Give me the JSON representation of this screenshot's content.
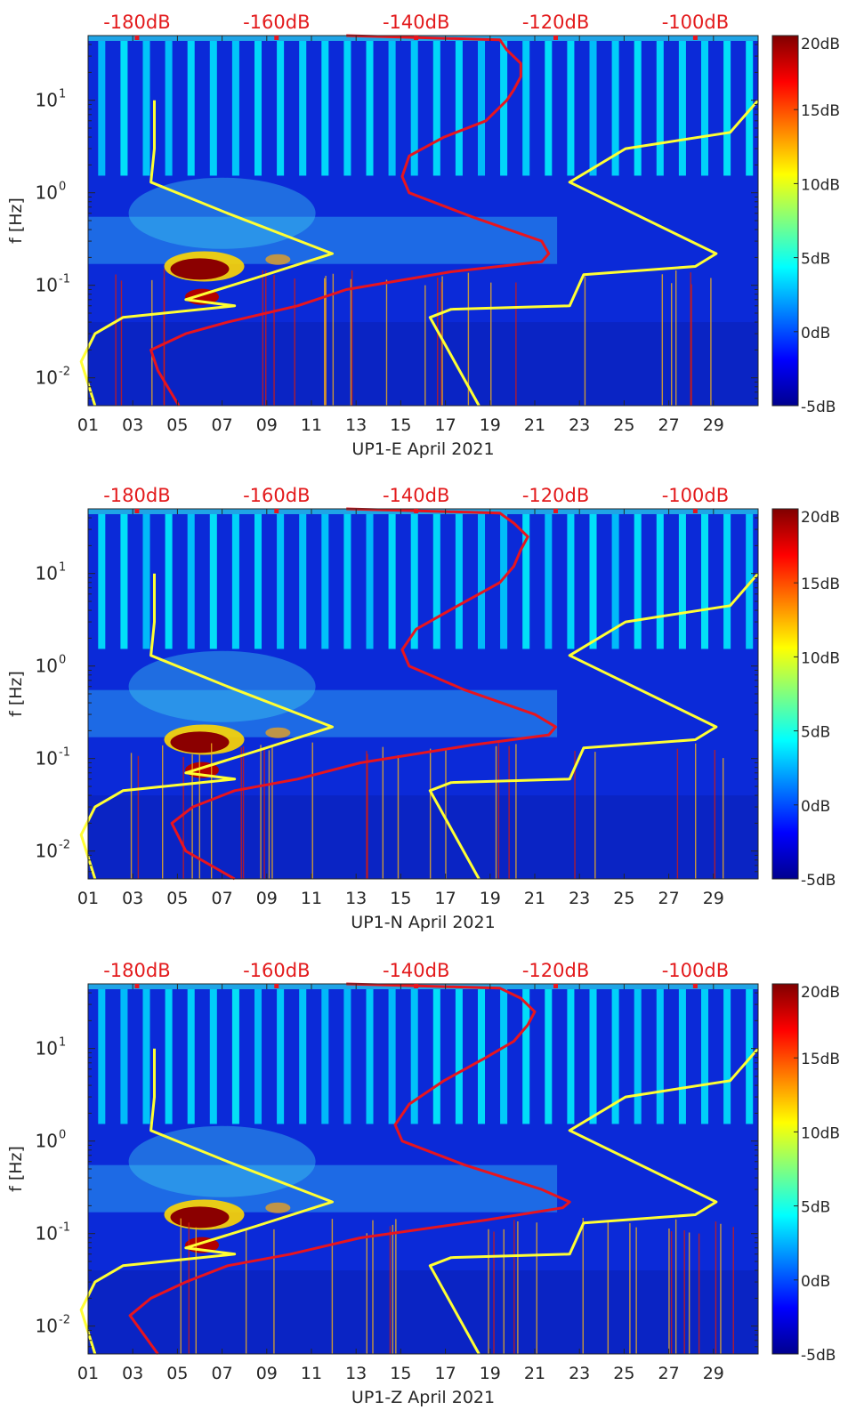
{
  "chart_data": [
    {
      "type": "heatmap",
      "xlabel": "UP1-E April 2021",
      "ylabel": "f [Hz]",
      "x_ticks": [
        "01",
        "03",
        "05",
        "07",
        "09",
        "11",
        "13",
        "15",
        "17",
        "19",
        "21",
        "23",
        "25",
        "27",
        "29"
      ],
      "x_range_days": [
        1,
        31
      ],
      "y_scale": "log",
      "y_range_hz": [
        0.005,
        50
      ],
      "y_ticks": [
        {
          "exp": "1",
          "value": 10
        },
        {
          "exp": "0",
          "value": 1
        },
        {
          "exp": "-1",
          "value": 0.1
        },
        {
          "exp": "-2",
          "value": 0.01
        }
      ],
      "top_axis_ticks": [
        "-180dB",
        "-160dB",
        "-140dB",
        "-120dB",
        "-100dB"
      ],
      "top_axis_range_db": [
        -187,
        -91
      ],
      "colorbar_ticks": [
        "20dB",
        "15dB",
        "10dB",
        "5dB",
        "0dB",
        "-5dB"
      ],
      "colorbar_range_db": [
        -5,
        20
      ],
      "colormap": "jet",
      "overlay_colors": {
        "noise_model": "#ffff33",
        "psd": "#e8141e"
      },
      "noise_model_low": [
        [
          -177.5,
          10
        ],
        [
          -177.5,
          3
        ],
        [
          -178,
          1.3
        ],
        [
          -167,
          0.6
        ],
        [
          -152,
          0.22
        ],
        [
          -163,
          0.12
        ],
        [
          -173,
          0.07
        ],
        [
          -166,
          0.06
        ],
        [
          -182,
          0.045
        ],
        [
          -186,
          0.03
        ],
        [
          -188,
          0.015
        ],
        [
          -186,
          0.005
        ]
      ],
      "noise_model_high": [
        [
          -91,
          10
        ],
        [
          -95,
          4.5
        ],
        [
          -110,
          3
        ],
        [
          -118,
          1.3
        ],
        [
          -97,
          0.22
        ],
        [
          -100,
          0.16
        ],
        [
          -116,
          0.13
        ],
        [
          -118,
          0.06
        ],
        [
          -135,
          0.055
        ],
        [
          -138,
          0.045
        ],
        [
          -131,
          0.005
        ]
      ],
      "psd_curve": [
        [
          -174,
          0.005
        ],
        [
          -177,
          0.012
        ],
        [
          -178,
          0.02
        ],
        [
          -173,
          0.03
        ],
        [
          -167,
          0.04
        ],
        [
          -157,
          0.06
        ],
        [
          -150,
          0.09
        ],
        [
          -135,
          0.14
        ],
        [
          -122,
          0.18
        ],
        [
          -121,
          0.22
        ],
        [
          -122,
          0.3
        ],
        [
          -132,
          0.55
        ],
        [
          -141,
          1.0
        ],
        [
          -142,
          1.5
        ],
        [
          -141,
          2.5
        ],
        [
          -136,
          4
        ],
        [
          -130,
          6
        ],
        [
          -127,
          10
        ],
        [
          -126,
          13
        ],
        [
          -125,
          18
        ],
        [
          -125,
          25
        ],
        [
          -127,
          35
        ],
        [
          -128,
          45
        ],
        [
          -150,
          50
        ]
      ]
    },
    {
      "type": "heatmap",
      "xlabel": "UP1-N April 2021",
      "ylabel": "f [Hz]",
      "x_ticks": [
        "01",
        "03",
        "05",
        "07",
        "09",
        "11",
        "13",
        "15",
        "17",
        "19",
        "21",
        "23",
        "25",
        "27",
        "29"
      ],
      "x_range_days": [
        1,
        31
      ],
      "y_scale": "log",
      "y_range_hz": [
        0.005,
        50
      ],
      "y_ticks": [
        {
          "exp": "1",
          "value": 10
        },
        {
          "exp": "0",
          "value": 1
        },
        {
          "exp": "-1",
          "value": 0.1
        },
        {
          "exp": "-2",
          "value": 0.01
        }
      ],
      "top_axis_ticks": [
        "-180dB",
        "-160dB",
        "-140dB",
        "-120dB",
        "-100dB"
      ],
      "top_axis_range_db": [
        -187,
        -91
      ],
      "colorbar_ticks": [
        "20dB",
        "15dB",
        "10dB",
        "5dB",
        "0dB",
        "-5dB"
      ],
      "colorbar_range_db": [
        -5,
        20
      ],
      "colormap": "jet",
      "overlay_colors": {
        "noise_model": "#ffff33",
        "psd": "#e8141e"
      },
      "noise_model_low": [
        [
          -177.5,
          10
        ],
        [
          -177.5,
          3
        ],
        [
          -178,
          1.3
        ],
        [
          -167,
          0.6
        ],
        [
          -152,
          0.22
        ],
        [
          -163,
          0.12
        ],
        [
          -173,
          0.07
        ],
        [
          -166,
          0.06
        ],
        [
          -182,
          0.045
        ],
        [
          -186,
          0.03
        ],
        [
          -188,
          0.015
        ],
        [
          -186,
          0.005
        ]
      ],
      "noise_model_high": [
        [
          -91,
          10
        ],
        [
          -95,
          4.5
        ],
        [
          -110,
          3
        ],
        [
          -118,
          1.3
        ],
        [
          -97,
          0.22
        ],
        [
          -100,
          0.16
        ],
        [
          -116,
          0.13
        ],
        [
          -118,
          0.06
        ],
        [
          -135,
          0.055
        ],
        [
          -138,
          0.045
        ],
        [
          -131,
          0.005
        ]
      ],
      "psd_curve": [
        [
          -166,
          0.005
        ],
        [
          -173,
          0.01
        ],
        [
          -175,
          0.02
        ],
        [
          -172,
          0.03
        ],
        [
          -166,
          0.045
        ],
        [
          -157,
          0.06
        ],
        [
          -148,
          0.09
        ],
        [
          -132,
          0.14
        ],
        [
          -121,
          0.18
        ],
        [
          -120,
          0.22
        ],
        [
          -123,
          0.3
        ],
        [
          -133,
          0.55
        ],
        [
          -141,
          1.0
        ],
        [
          -142,
          1.5
        ],
        [
          -140,
          2.5
        ],
        [
          -134,
          4.5
        ],
        [
          -128,
          8
        ],
        [
          -126,
          12
        ],
        [
          -125,
          18
        ],
        [
          -124,
          25
        ],
        [
          -126,
          35
        ],
        [
          -128,
          45
        ],
        [
          -150,
          50
        ]
      ]
    },
    {
      "type": "heatmap",
      "xlabel": "UP1-Z April 2021",
      "ylabel": "f [Hz]",
      "x_ticks": [
        "01",
        "03",
        "05",
        "07",
        "09",
        "11",
        "13",
        "15",
        "17",
        "19",
        "21",
        "23",
        "25",
        "27",
        "29"
      ],
      "x_range_days": [
        1,
        31
      ],
      "y_scale": "log",
      "y_range_hz": [
        0.005,
        50
      ],
      "y_ticks": [
        {
          "exp": "1",
          "value": 10
        },
        {
          "exp": "0",
          "value": 1
        },
        {
          "exp": "-1",
          "value": 0.1
        },
        {
          "exp": "-2",
          "value": 0.01
        }
      ],
      "top_axis_ticks": [
        "-180dB",
        "-160dB",
        "-140dB",
        "-120dB",
        "-100dB"
      ],
      "top_axis_range_db": [
        -187,
        -91
      ],
      "colorbar_ticks": [
        "20dB",
        "15dB",
        "10dB",
        "5dB",
        "0dB",
        "-5dB"
      ],
      "colorbar_range_db": [
        -5,
        20
      ],
      "colormap": "jet",
      "overlay_colors": {
        "noise_model": "#ffff33",
        "psd": "#e8141e"
      },
      "noise_model_low": [
        [
          -177.5,
          10
        ],
        [
          -177.5,
          3
        ],
        [
          -178,
          1.3
        ],
        [
          -167,
          0.6
        ],
        [
          -152,
          0.22
        ],
        [
          -163,
          0.12
        ],
        [
          -173,
          0.07
        ],
        [
          -166,
          0.06
        ],
        [
          -182,
          0.045
        ],
        [
          -186,
          0.03
        ],
        [
          -188,
          0.015
        ],
        [
          -186,
          0.005
        ]
      ],
      "noise_model_high": [
        [
          -91,
          10
        ],
        [
          -95,
          4.5
        ],
        [
          -110,
          3
        ],
        [
          -118,
          1.3
        ],
        [
          -97,
          0.22
        ],
        [
          -100,
          0.16
        ],
        [
          -116,
          0.13
        ],
        [
          -118,
          0.06
        ],
        [
          -135,
          0.055
        ],
        [
          -138,
          0.045
        ],
        [
          -131,
          0.005
        ]
      ],
      "psd_curve": [
        [
          -177,
          0.005
        ],
        [
          -181,
          0.013
        ],
        [
          -178,
          0.02
        ],
        [
          -173,
          0.03
        ],
        [
          -167,
          0.045
        ],
        [
          -158,
          0.06
        ],
        [
          -148,
          0.09
        ],
        [
          -130,
          0.14
        ],
        [
          -119,
          0.19
        ],
        [
          -118,
          0.22
        ],
        [
          -122,
          0.3
        ],
        [
          -133,
          0.55
        ],
        [
          -142,
          1.0
        ],
        [
          -143,
          1.5
        ],
        [
          -141,
          2.5
        ],
        [
          -136,
          4.5
        ],
        [
          -130,
          8
        ],
        [
          -126,
          12
        ],
        [
          -124,
          18
        ],
        [
          -123,
          25
        ],
        [
          -125,
          35
        ],
        [
          -128,
          45
        ],
        [
          -150,
          50
        ]
      ]
    }
  ]
}
